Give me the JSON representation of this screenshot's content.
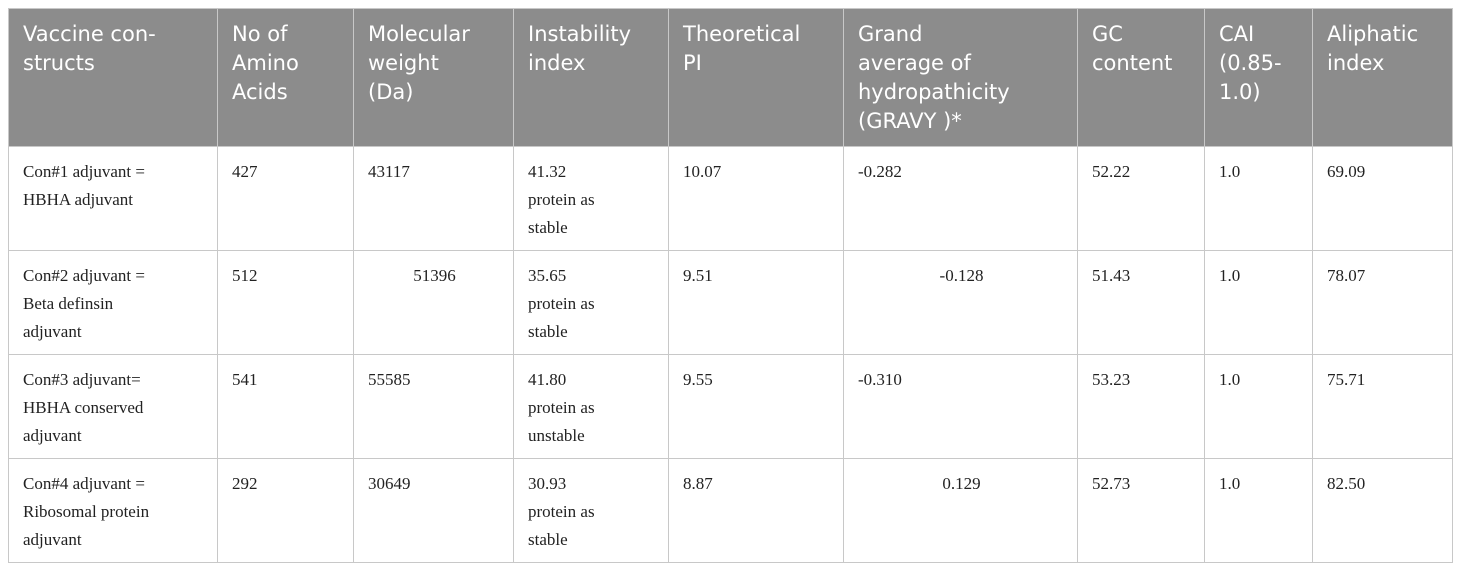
{
  "table": {
    "header": [
      "Vaccine con-\nstructs",
      "No of\nAmino\nAcids",
      "Molecular\nweight\n(Da)",
      "Instability\nindex",
      "Theoretical\nPI",
      "Grand\naverage of\nhydropathicity\n(GRAVY )*",
      "GC\ncontent",
      "CAI\n(0.85-\n1.0)",
      "Aliphatic\nindex"
    ],
    "rows": [
      [
        "Con#1 adjuvant =\nHBHA adjuvant",
        "427",
        "43117",
        "41.32\nprotein as\nstable",
        "10.07",
        "-0.282",
        "52.22",
        "1.0",
        "69.09"
      ],
      [
        "Con#2 adjuvant =\nBeta definsin\nadjuvant",
        "512",
        "51396",
        "35.65\nprotein as\nstable",
        "9.51",
        "-0.128",
        "51.43",
        "1.0",
        "78.07"
      ],
      [
        "Con#3 adjuvant=\nHBHA conserved\nadjuvant",
        "541",
        "55585",
        "41.80\nprotein as\nunstable",
        "9.55",
        "-0.310",
        "53.23",
        "1.0",
        "75.71"
      ],
      [
        "Con#4 adjuvant =\nRibosomal protein\nadjuvant",
        "292",
        "30649",
        "30.93\nprotein as\nstable",
        "8.87",
        "0.129",
        "52.73",
        "1.0",
        "82.50"
      ]
    ]
  }
}
